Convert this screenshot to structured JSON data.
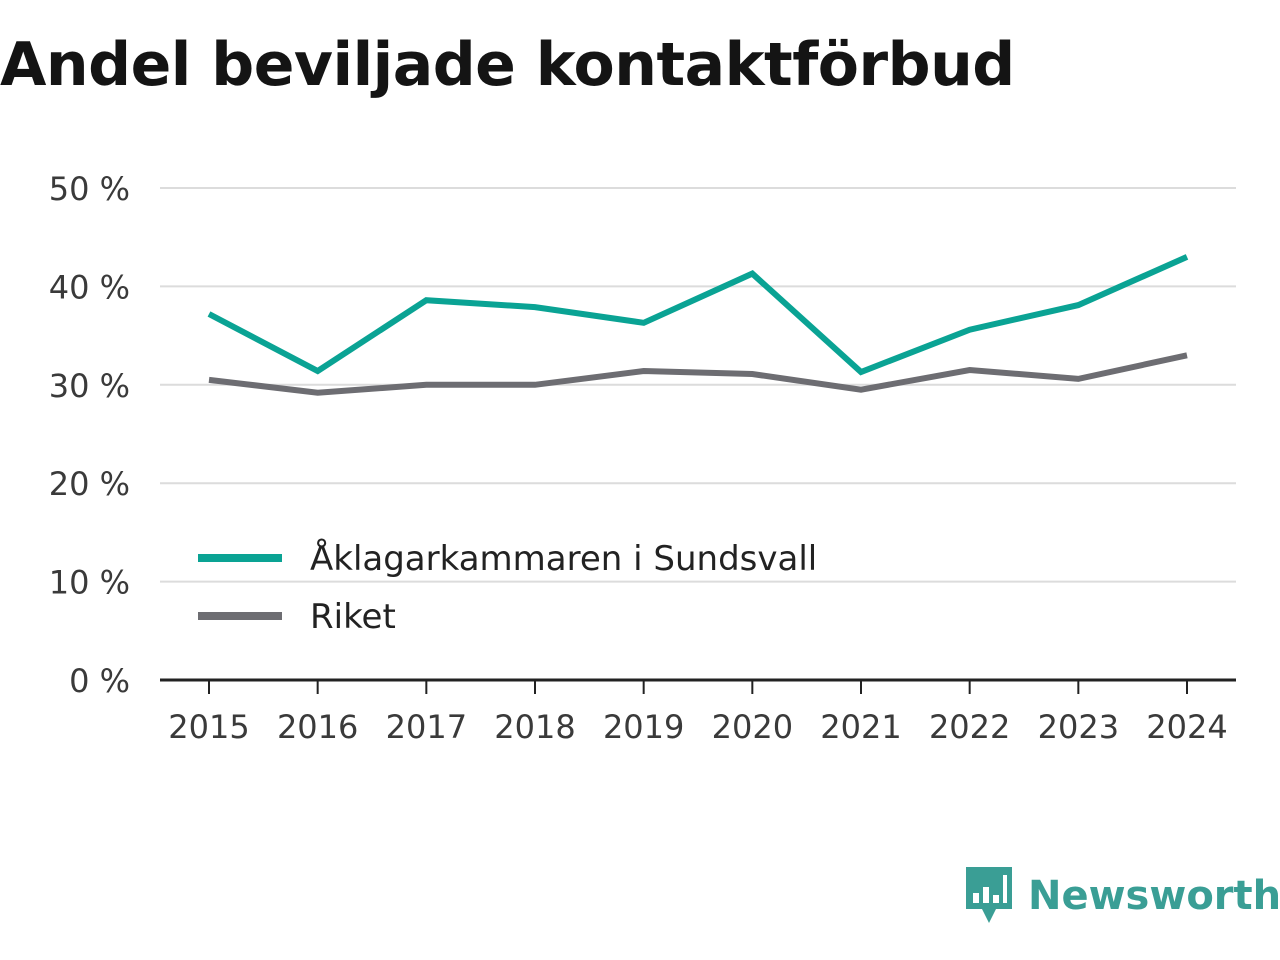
{
  "title": "Andel beviljade kontaktförbud",
  "brand": {
    "name": "Newsworthy"
  },
  "chart_data": {
    "type": "line",
    "x": [
      "2015",
      "2016",
      "2017",
      "2018",
      "2019",
      "2020",
      "2021",
      "2022",
      "2023",
      "2024"
    ],
    "series": [
      {
        "name": "Åklagarkammaren i Sundsvall",
        "color": "#0aa394",
        "values": [
          37.2,
          31.4,
          38.6,
          37.9,
          36.3,
          41.3,
          31.3,
          35.6,
          38.1,
          43.0
        ]
      },
      {
        "name": "Riket",
        "color": "#6d6d72",
        "values": [
          30.5,
          29.2,
          30.0,
          30.0,
          31.4,
          31.1,
          29.5,
          31.5,
          30.6,
          33.0
        ]
      }
    ],
    "ylim": [
      0,
      50
    ],
    "yticks": [
      0,
      10,
      20,
      30,
      40,
      50
    ],
    "ytick_labels": [
      "0 %",
      "10 %",
      "20 %",
      "30 %",
      "40 %",
      "50 %"
    ],
    "grid": true,
    "legend_position": "lower-left"
  }
}
